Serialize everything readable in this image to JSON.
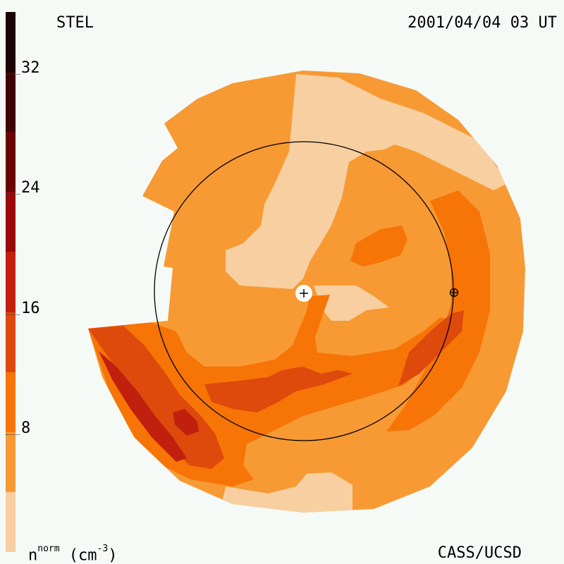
{
  "header": {
    "source": "STEL",
    "timestamp": "2001/04/04 03 UT"
  },
  "footer": {
    "credit": "CASS/UCSD",
    "unit_base": "n",
    "unit_sup": "norm",
    "unit_rest": " (cm",
    "unit_exp": "-3",
    "unit_close": ")"
  },
  "colorbar": {
    "min": 0,
    "max": 36,
    "ticks": [
      {
        "value": 8,
        "label": "8"
      },
      {
        "value": 16,
        "label": "16"
      },
      {
        "value": 24,
        "label": "24"
      },
      {
        "value": 32,
        "label": "32"
      }
    ],
    "levels": [
      {
        "from": 0,
        "to": 4,
        "color": "#f8cfa0"
      },
      {
        "from": 4,
        "to": 8,
        "color": "#f79a33"
      },
      {
        "from": 8,
        "to": 12,
        "color": "#f77406"
      },
      {
        "from": 12,
        "to": 16,
        "color": "#dd4a0c"
      },
      {
        "from": 16,
        "to": 20,
        "color": "#c0200d"
      },
      {
        "from": 20,
        "to": 24,
        "color": "#9a0707"
      },
      {
        "from": 24,
        "to": 28,
        "color": "#6a0404"
      },
      {
        "from": 28,
        "to": 32,
        "color": "#3e0404"
      },
      {
        "from": 32,
        "to": 36,
        "color": "#1c0202"
      }
    ]
  },
  "colors": {
    "background": "#f6faf7",
    "level_low": "#f8cfa0",
    "level_base": "#f79a33",
    "level_mid": "#f77406",
    "level_high": "#dd4a0c",
    "level_peak": "#c0200d"
  },
  "markers": {
    "sun_symbol": "plus-in-circle",
    "earth_symbol": "earth-crosshair"
  }
}
